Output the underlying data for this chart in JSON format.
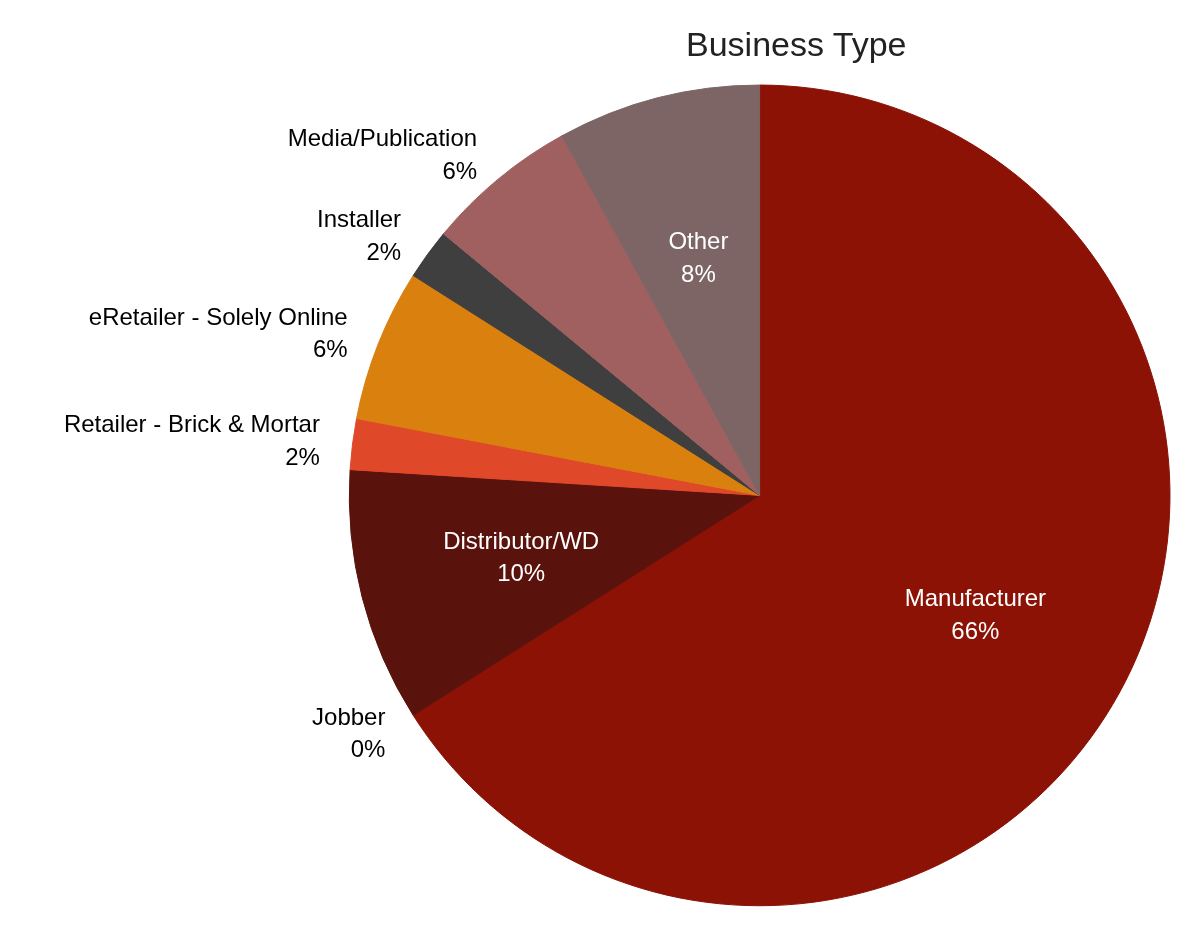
{
  "chart_data": {
    "type": "pie",
    "title": "Business Type",
    "categories": [
      "Manufacturer",
      "Jobber",
      "Distributor/WD",
      "Retailer - Brick & Mortar",
      "eRetailer - Solely Online",
      "Installer",
      "Media/Publication",
      "Other"
    ],
    "values": [
      66,
      0,
      10,
      2,
      6,
      2,
      6,
      8
    ],
    "colors": [
      "#8b1205",
      "#6b1a10",
      "#5a120c",
      "#e0482a",
      "#d9800f",
      "#3f3f3f",
      "#a06060",
      "#7d6566"
    ],
    "value_labels": [
      "66%",
      "0%",
      "10%",
      "2%",
      "6%",
      "2%",
      "6%",
      "8%"
    ]
  }
}
